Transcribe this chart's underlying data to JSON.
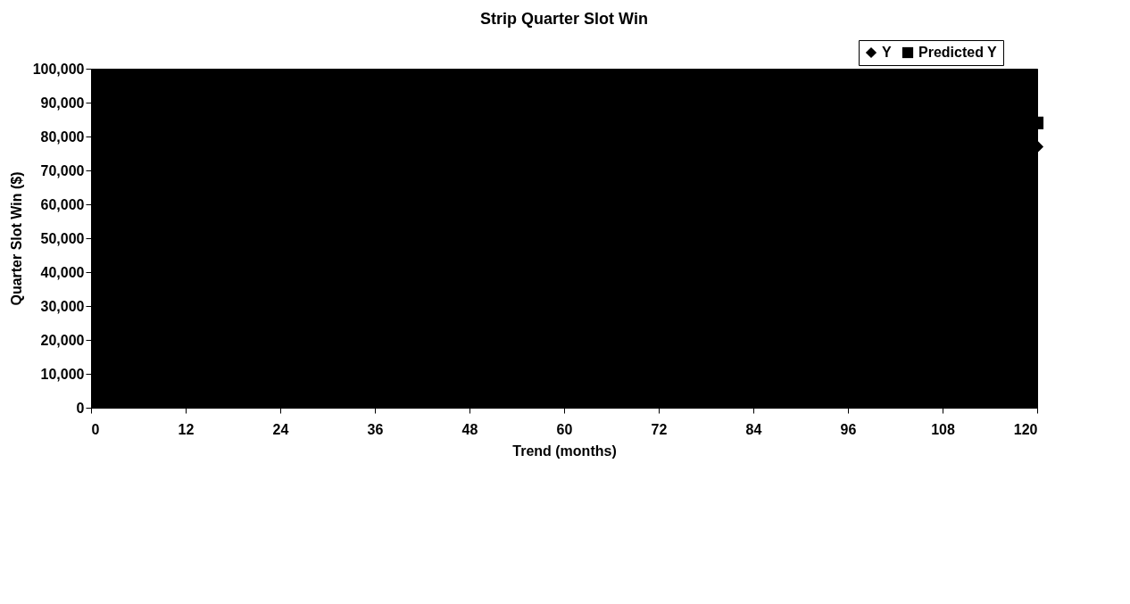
{
  "chart_data": {
    "type": "scatter",
    "title": "Strip Quarter Slot Win",
    "xlabel": "Trend (months)",
    "ylabel": "Quarter Slot Win ($)",
    "x": [
      120
    ],
    "series": [
      {
        "name": "Y",
        "color": "#000000",
        "marker": "diamond",
        "values": [
          77000
        ]
      },
      {
        "name": "Predicted Y",
        "color": "#000000",
        "marker": "square",
        "values": [
          84000
        ]
      }
    ],
    "xlim": [
      0,
      120
    ],
    "xticks": [
      0,
      12,
      24,
      36,
      48,
      60,
      72,
      84,
      96,
      108,
      120
    ],
    "ylim": [
      0,
      100000
    ],
    "yticks": [
      0,
      {
        "value": 10000,
        "label": "10,000"
      },
      {
        "value": 20000,
        "label": "20,000"
      },
      {
        "value": 30000,
        "label": "30,000"
      },
      {
        "value": 40000,
        "label": "40,000"
      },
      {
        "value": 50000,
        "label": "50,000"
      },
      {
        "value": 60000,
        "label": "60,000"
      },
      {
        "value": 70000,
        "label": "70,000"
      },
      {
        "value": 80000,
        "label": "80,000"
      },
      {
        "value": 90000,
        "label": "90,000"
      },
      {
        "value": 100000,
        "label": "100,000"
      }
    ],
    "grid": false,
    "legend": "top right"
  }
}
